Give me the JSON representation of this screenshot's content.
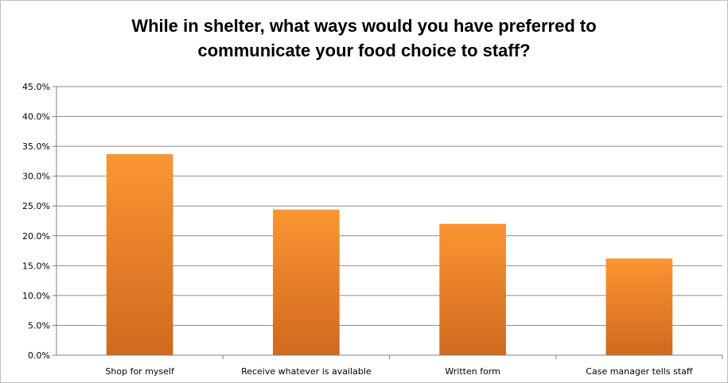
{
  "chart_data": {
    "type": "bar",
    "title_line1": "While in shelter, what ways would you have preferred to",
    "title_line2": "communicate your food choice to staff?",
    "xlabel": "",
    "ylabel": "",
    "categories": [
      "Shop for myself",
      "Receive whatever is available",
      "Written form",
      "Case manager tells staff"
    ],
    "values": [
      33.7,
      24.4,
      22.0,
      16.2
    ],
    "ylim": [
      0,
      45
    ],
    "ytick_values": [
      0,
      5,
      10,
      15,
      20,
      25,
      30,
      35,
      40,
      45
    ],
    "yticks": [
      "0.0%",
      "5.0%",
      "10.0%",
      "15.0%",
      "20.0%",
      "25.0%",
      "30.0%",
      "35.0%",
      "40.0%",
      "45.0%"
    ],
    "grid": true,
    "legend": "none",
    "colors": {
      "bar_top": "#fb9532",
      "bar_bottom": "#cf6a1f",
      "grid": "#8c8c8c",
      "axis": "#808080"
    }
  }
}
